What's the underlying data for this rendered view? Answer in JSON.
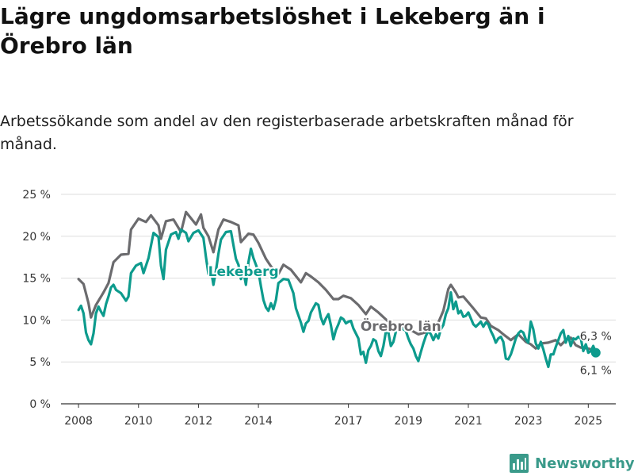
{
  "header": {
    "title": "Lägre ungdomsarbetslöshet i Lekeberg än i Örebro län",
    "subtitle": "Arbetssökande som andel av den registerbaserade arbetskraften månad för månad."
  },
  "brand": {
    "name": "Newsworthy",
    "icon": "bar-chart-logo-icon",
    "color": "#3a9a8a"
  },
  "chart_data": {
    "type": "line",
    "ylim": [
      0,
      25
    ],
    "yticks": [
      0,
      5,
      10,
      15,
      20,
      25
    ],
    "ytick_labels": [
      "0 %",
      "5 %",
      "10 %",
      "15 %",
      "20 %",
      "25 %"
    ],
    "xlim": [
      "2007-06",
      "2025-12"
    ],
    "xticks": [
      "2008",
      "2010",
      "2012",
      "2014",
      "2017",
      "2019",
      "2021",
      "2023",
      "2025"
    ],
    "grid": true,
    "series": [
      {
        "name": "Örebro län",
        "color": "#6b6b6e",
        "label_position": "2018-10",
        "points": [
          [
            "2008-01",
            14.9
          ],
          [
            "2008-03",
            14.3
          ],
          [
            "2008-05",
            12.0
          ],
          [
            "2008-06",
            10.3
          ],
          [
            "2008-08",
            11.8
          ],
          [
            "2008-11",
            13.3
          ],
          [
            "2009-01",
            14.4
          ],
          [
            "2009-03",
            16.9
          ],
          [
            "2009-06",
            17.8
          ],
          [
            "2009-09",
            17.9
          ],
          [
            "2009-10",
            20.8
          ],
          [
            "2010-01",
            22.1
          ],
          [
            "2010-04",
            21.7
          ],
          [
            "2010-06",
            22.5
          ],
          [
            "2010-09",
            21.3
          ],
          [
            "2010-10",
            19.7
          ],
          [
            "2010-12",
            21.8
          ],
          [
            "2011-03",
            22.0
          ],
          [
            "2011-06",
            20.5
          ],
          [
            "2011-08",
            22.9
          ],
          [
            "2011-12",
            21.4
          ],
          [
            "2012-02",
            22.6
          ],
          [
            "2012-03",
            21.0
          ],
          [
            "2012-05",
            20.0
          ],
          [
            "2012-07",
            18.1
          ],
          [
            "2012-09",
            20.8
          ],
          [
            "2012-11",
            22.0
          ],
          [
            "2013-02",
            21.7
          ],
          [
            "2013-05",
            21.3
          ],
          [
            "2013-06",
            19.3
          ],
          [
            "2013-09",
            20.3
          ],
          [
            "2013-11",
            20.2
          ],
          [
            "2014-01",
            19.2
          ],
          [
            "2014-04",
            17.3
          ],
          [
            "2014-06",
            16.4
          ],
          [
            "2014-09",
            15.5
          ],
          [
            "2014-11",
            16.6
          ],
          [
            "2015-02",
            16.0
          ],
          [
            "2015-06",
            14.5
          ],
          [
            "2015-08",
            15.6
          ],
          [
            "2015-10",
            15.2
          ],
          [
            "2016-01",
            14.5
          ],
          [
            "2016-04",
            13.6
          ],
          [
            "2016-07",
            12.5
          ],
          [
            "2016-09",
            12.5
          ],
          [
            "2016-11",
            12.9
          ],
          [
            "2017-02",
            12.6
          ],
          [
            "2017-05",
            11.8
          ],
          [
            "2017-08",
            10.7
          ],
          [
            "2017-10",
            11.6
          ],
          [
            "2018-01",
            10.9
          ],
          [
            "2018-05",
            9.8
          ],
          [
            "2018-10",
            9.3
          ],
          [
            "2019-02",
            8.8
          ],
          [
            "2019-05",
            8.3
          ],
          [
            "2019-10",
            8.7
          ],
          [
            "2020-01",
            9.7
          ],
          [
            "2020-03",
            11.1
          ],
          [
            "2020-05",
            13.7
          ],
          [
            "2020-06",
            14.2
          ],
          [
            "2020-08",
            13.3
          ],
          [
            "2020-09",
            12.7
          ],
          [
            "2020-11",
            12.8
          ],
          [
            "2021-03",
            11.4
          ],
          [
            "2021-06",
            10.3
          ],
          [
            "2021-08",
            10.2
          ],
          [
            "2021-10",
            9.3
          ],
          [
            "2022-01",
            8.8
          ],
          [
            "2022-03",
            8.3
          ],
          [
            "2022-06",
            7.6
          ],
          [
            "2022-09",
            8.3
          ],
          [
            "2022-12",
            7.4
          ],
          [
            "2023-02",
            7.1
          ],
          [
            "2023-04",
            6.6
          ],
          [
            "2023-06",
            7.2
          ],
          [
            "2023-09",
            7.3
          ],
          [
            "2023-12",
            7.6
          ],
          [
            "2024-02",
            7.0
          ],
          [
            "2024-04",
            7.6
          ],
          [
            "2024-06",
            7.9
          ],
          [
            "2024-08",
            7.0
          ],
          [
            "2024-10",
            6.7
          ],
          [
            "2025-01",
            6.6
          ],
          [
            "2025-04",
            6.3
          ]
        ]
      },
      {
        "name": "Lekeberg",
        "color": "#0d9b8d",
        "label_position": "2013-07",
        "points": [
          [
            "2008-01",
            11.2
          ],
          [
            "2008-02",
            11.7
          ],
          [
            "2008-03",
            10.8
          ],
          [
            "2008-04",
            8.5
          ],
          [
            "2008-05",
            7.6
          ],
          [
            "2008-06",
            7.1
          ],
          [
            "2008-07",
            8.4
          ],
          [
            "2008-08",
            10.8
          ],
          [
            "2008-09",
            11.6
          ],
          [
            "2008-10",
            11.0
          ],
          [
            "2008-11",
            10.5
          ],
          [
            "2008-12",
            11.9
          ],
          [
            "2009-01",
            12.8
          ],
          [
            "2009-02",
            13.9
          ],
          [
            "2009-03",
            14.2
          ],
          [
            "2009-04",
            13.6
          ],
          [
            "2009-06",
            13.2
          ],
          [
            "2009-08",
            12.3
          ],
          [
            "2009-09",
            12.8
          ],
          [
            "2009-10",
            15.6
          ],
          [
            "2009-12",
            16.5
          ],
          [
            "2010-02",
            16.8
          ],
          [
            "2010-03",
            15.6
          ],
          [
            "2010-05",
            17.4
          ],
          [
            "2010-07",
            20.4
          ],
          [
            "2010-09",
            19.9
          ],
          [
            "2010-10",
            16.5
          ],
          [
            "2010-11",
            14.9
          ],
          [
            "2010-12",
            18.4
          ],
          [
            "2011-02",
            20.2
          ],
          [
            "2011-04",
            20.5
          ],
          [
            "2011-05",
            19.7
          ],
          [
            "2011-06",
            20.8
          ],
          [
            "2011-08",
            20.4
          ],
          [
            "2011-09",
            19.4
          ],
          [
            "2011-11",
            20.4
          ],
          [
            "2012-01",
            20.7
          ],
          [
            "2012-03",
            19.8
          ],
          [
            "2012-04",
            17.5
          ],
          [
            "2012-05",
            15.5
          ],
          [
            "2012-06",
            16.0
          ],
          [
            "2012-07",
            14.2
          ],
          [
            "2012-08",
            15.9
          ],
          [
            "2012-09",
            17.9
          ],
          [
            "2012-10",
            19.6
          ],
          [
            "2012-12",
            20.5
          ],
          [
            "2013-02",
            20.6
          ],
          [
            "2013-04",
            17.3
          ],
          [
            "2013-05",
            16.6
          ],
          [
            "2013-06",
            14.9
          ],
          [
            "2013-07",
            15.8
          ],
          [
            "2013-08",
            14.2
          ],
          [
            "2013-09",
            16.9
          ],
          [
            "2013-10",
            18.5
          ],
          [
            "2013-11",
            17.4
          ],
          [
            "2014-01",
            15.8
          ],
          [
            "2014-02",
            14.0
          ],
          [
            "2014-03",
            12.4
          ],
          [
            "2014-04",
            11.5
          ],
          [
            "2014-05",
            11.1
          ],
          [
            "2014-06",
            12.0
          ],
          [
            "2014-07",
            11.3
          ],
          [
            "2014-08",
            12.4
          ],
          [
            "2014-09",
            14.4
          ],
          [
            "2014-11",
            14.9
          ],
          [
            "2015-01",
            14.8
          ],
          [
            "2015-03",
            13.2
          ],
          [
            "2015-04",
            11.4
          ],
          [
            "2015-06",
            9.7
          ],
          [
            "2015-07",
            8.6
          ],
          [
            "2015-08",
            9.6
          ],
          [
            "2015-09",
            9.9
          ],
          [
            "2015-10",
            10.9
          ],
          [
            "2015-12",
            12.0
          ],
          [
            "2016-01",
            11.8
          ],
          [
            "2016-02",
            10.3
          ],
          [
            "2016-03",
            9.5
          ],
          [
            "2016-04",
            10.2
          ],
          [
            "2016-05",
            10.7
          ],
          [
            "2016-06",
            9.4
          ],
          [
            "2016-07",
            7.7
          ],
          [
            "2016-08",
            8.8
          ],
          [
            "2016-09",
            9.5
          ],
          [
            "2016-10",
            10.3
          ],
          [
            "2016-11",
            10.1
          ],
          [
            "2016-12",
            9.6
          ],
          [
            "2017-01",
            9.8
          ],
          [
            "2017-02",
            9.9
          ],
          [
            "2017-03",
            9.0
          ],
          [
            "2017-05",
            7.8
          ],
          [
            "2017-06",
            5.9
          ],
          [
            "2017-07",
            6.2
          ],
          [
            "2017-08",
            4.9
          ],
          [
            "2017-09",
            6.4
          ],
          [
            "2017-10",
            6.9
          ],
          [
            "2017-11",
            7.7
          ],
          [
            "2017-12",
            7.5
          ],
          [
            "2018-01",
            6.3
          ],
          [
            "2018-02",
            5.7
          ],
          [
            "2018-03",
            6.9
          ],
          [
            "2018-04",
            8.6
          ],
          [
            "2018-05",
            8.5
          ],
          [
            "2018-06",
            6.9
          ],
          [
            "2018-07",
            7.4
          ],
          [
            "2018-08",
            8.6
          ],
          [
            "2018-10",
            9.1
          ],
          [
            "2018-12",
            8.7
          ],
          [
            "2019-01",
            7.8
          ],
          [
            "2019-02",
            7.1
          ],
          [
            "2019-03",
            6.6
          ],
          [
            "2019-04",
            5.7
          ],
          [
            "2019-05",
            5.1
          ],
          [
            "2019-06",
            6.2
          ],
          [
            "2019-07",
            7.2
          ],
          [
            "2019-08",
            8.1
          ],
          [
            "2019-09",
            8.7
          ],
          [
            "2019-10",
            8.3
          ],
          [
            "2019-11",
            7.6
          ],
          [
            "2019-12",
            8.3
          ],
          [
            "2020-01",
            7.8
          ],
          [
            "2020-02",
            8.9
          ],
          [
            "2020-03",
            9.4
          ],
          [
            "2020-04",
            10.7
          ],
          [
            "2020-05",
            11.4
          ],
          [
            "2020-06",
            13.3
          ],
          [
            "2020-07",
            11.3
          ],
          [
            "2020-08",
            12.2
          ],
          [
            "2020-09",
            10.8
          ],
          [
            "2020-10",
            11.1
          ],
          [
            "2020-11",
            10.4
          ],
          [
            "2020-12",
            10.5
          ],
          [
            "2021-01",
            10.9
          ],
          [
            "2021-02",
            10.2
          ],
          [
            "2021-03",
            9.5
          ],
          [
            "2021-04",
            9.2
          ],
          [
            "2021-05",
            9.5
          ],
          [
            "2021-06",
            9.8
          ],
          [
            "2021-07",
            9.2
          ],
          [
            "2021-08",
            9.7
          ],
          [
            "2021-09",
            9.5
          ],
          [
            "2021-10",
            8.7
          ],
          [
            "2021-11",
            8.1
          ],
          [
            "2021-12",
            7.3
          ],
          [
            "2022-01",
            7.8
          ],
          [
            "2022-02",
            8.0
          ],
          [
            "2022-03",
            7.4
          ],
          [
            "2022-04",
            5.4
          ],
          [
            "2022-05",
            5.3
          ],
          [
            "2022-06",
            5.9
          ],
          [
            "2022-07",
            6.8
          ],
          [
            "2022-08",
            7.8
          ],
          [
            "2022-09",
            8.4
          ],
          [
            "2022-10",
            8.7
          ],
          [
            "2022-11",
            8.5
          ],
          [
            "2022-12",
            7.7
          ],
          [
            "2023-01",
            7.3
          ],
          [
            "2023-02",
            9.8
          ],
          [
            "2023-03",
            8.9
          ],
          [
            "2023-04",
            7.2
          ],
          [
            "2023-05",
            6.6
          ],
          [
            "2023-06",
            7.4
          ],
          [
            "2023-07",
            6.5
          ],
          [
            "2023-08",
            5.4
          ],
          [
            "2023-09",
            4.4
          ],
          [
            "2023-10",
            5.9
          ],
          [
            "2023-11",
            5.9
          ],
          [
            "2023-12",
            6.8
          ],
          [
            "2024-01",
            7.6
          ],
          [
            "2024-02",
            8.4
          ],
          [
            "2024-03",
            8.8
          ],
          [
            "2024-04",
            7.3
          ],
          [
            "2024-05",
            8.1
          ],
          [
            "2024-06",
            6.9
          ],
          [
            "2024-07",
            7.8
          ],
          [
            "2024-08",
            7.7
          ],
          [
            "2024-09",
            8.0
          ],
          [
            "2024-10",
            7.8
          ],
          [
            "2024-11",
            6.3
          ],
          [
            "2024-12",
            7.1
          ],
          [
            "2025-01",
            6.1
          ],
          [
            "2025-02",
            6.3
          ],
          [
            "2025-03",
            6.9
          ],
          [
            "2025-04",
            6.1
          ]
        ]
      }
    ],
    "end_labels": [
      {
        "series": "Örebro län",
        "text": "6,3 %"
      },
      {
        "series": "Lekeberg",
        "text": "6,1 %"
      }
    ]
  }
}
